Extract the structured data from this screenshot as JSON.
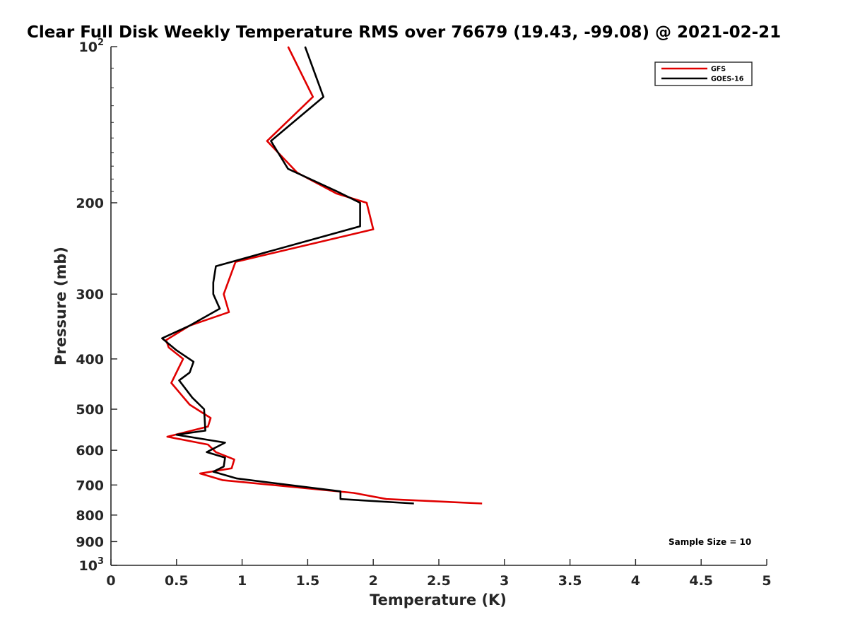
{
  "chart_data": {
    "type": "line",
    "title": "Clear Full Disk Weekly Temperature RMS over 76679 (19.43, -99.08) @ 2021-02-21",
    "xlabel": "Temperature (K)",
    "ylabel": "Pressure (mb)",
    "xlim": [
      0,
      5
    ],
    "ylim": [
      100,
      1000
    ],
    "y_scale": "log",
    "y_reversed": true,
    "x_ticks": [
      "0",
      "0.5",
      "1",
      "1.5",
      "2",
      "2.5",
      "3",
      "3.5",
      "4",
      "4.5",
      "5"
    ],
    "y_ticks": [
      {
        "value": 100,
        "base": "10",
        "exp": "2"
      },
      {
        "value": 200,
        "label": "200"
      },
      {
        "value": 300,
        "label": "300"
      },
      {
        "value": 400,
        "label": "400"
      },
      {
        "value": 500,
        "label": "500"
      },
      {
        "value": 600,
        "label": "600"
      },
      {
        "value": 700,
        "label": "700"
      },
      {
        "value": 800,
        "label": "800"
      },
      {
        "value": 900,
        "label": "900"
      },
      {
        "value": 1000,
        "base": "10",
        "exp": "3"
      }
    ],
    "grid": false,
    "legend_position": "top-right",
    "annotation": "Sample Size = 10",
    "series": [
      {
        "name": "GFS",
        "color": "#e00000",
        "points": [
          {
            "x": 1.35,
            "y": 100
          },
          {
            "x": 1.54,
            "y": 125
          },
          {
            "x": 1.19,
            "y": 152
          },
          {
            "x": 1.42,
            "y": 175
          },
          {
            "x": 1.72,
            "y": 192
          },
          {
            "x": 1.95,
            "y": 200
          },
          {
            "x": 2.0,
            "y": 225
          },
          {
            "x": 0.95,
            "y": 260
          },
          {
            "x": 0.86,
            "y": 300
          },
          {
            "x": 0.9,
            "y": 325
          },
          {
            "x": 0.6,
            "y": 345
          },
          {
            "x": 0.42,
            "y": 368
          },
          {
            "x": 0.44,
            "y": 380
          },
          {
            "x": 0.55,
            "y": 400
          },
          {
            "x": 0.46,
            "y": 445
          },
          {
            "x": 0.6,
            "y": 490
          },
          {
            "x": 0.76,
            "y": 520
          },
          {
            "x": 0.74,
            "y": 540
          },
          {
            "x": 0.43,
            "y": 565
          },
          {
            "x": 0.74,
            "y": 585
          },
          {
            "x": 0.8,
            "y": 605
          },
          {
            "x": 0.94,
            "y": 625
          },
          {
            "x": 0.92,
            "y": 650
          },
          {
            "x": 0.68,
            "y": 665
          },
          {
            "x": 0.85,
            "y": 685
          },
          {
            "x": 1.85,
            "y": 725
          },
          {
            "x": 2.1,
            "y": 745
          },
          {
            "x": 2.83,
            "y": 760
          }
        ]
      },
      {
        "name": "GOES-16",
        "color": "#000000",
        "points": [
          {
            "x": 1.48,
            "y": 100
          },
          {
            "x": 1.62,
            "y": 125
          },
          {
            "x": 1.22,
            "y": 152
          },
          {
            "x": 1.35,
            "y": 172
          },
          {
            "x": 1.72,
            "y": 190
          },
          {
            "x": 1.9,
            "y": 200
          },
          {
            "x": 1.9,
            "y": 222
          },
          {
            "x": 0.8,
            "y": 265
          },
          {
            "x": 0.78,
            "y": 285
          },
          {
            "x": 0.78,
            "y": 300
          },
          {
            "x": 0.83,
            "y": 320
          },
          {
            "x": 0.6,
            "y": 345
          },
          {
            "x": 0.39,
            "y": 365
          },
          {
            "x": 0.5,
            "y": 385
          },
          {
            "x": 0.63,
            "y": 405
          },
          {
            "x": 0.6,
            "y": 425
          },
          {
            "x": 0.52,
            "y": 440
          },
          {
            "x": 0.62,
            "y": 475
          },
          {
            "x": 0.71,
            "y": 500
          },
          {
            "x": 0.72,
            "y": 550
          },
          {
            "x": 0.5,
            "y": 560
          },
          {
            "x": 0.87,
            "y": 580
          },
          {
            "x": 0.73,
            "y": 605
          },
          {
            "x": 0.87,
            "y": 620
          },
          {
            "x": 0.86,
            "y": 645
          },
          {
            "x": 0.78,
            "y": 660
          },
          {
            "x": 0.96,
            "y": 680
          },
          {
            "x": 1.75,
            "y": 720
          },
          {
            "x": 1.75,
            "y": 745
          },
          {
            "x": 2.31,
            "y": 760
          }
        ]
      }
    ]
  }
}
